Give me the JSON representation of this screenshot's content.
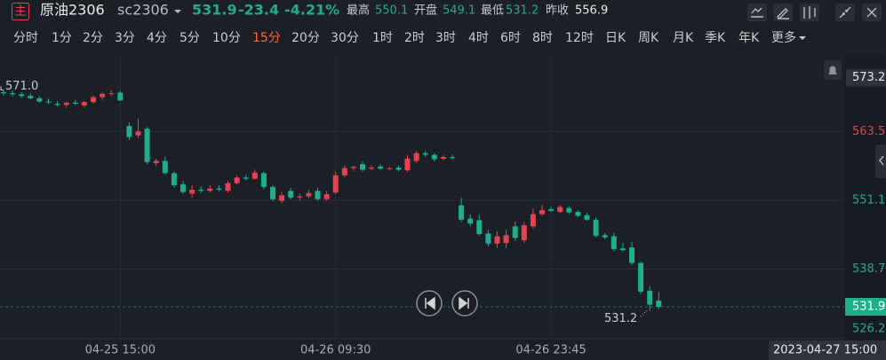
{
  "header": {
    "icon": "主",
    "name": "原油2306",
    "code": "sc2306",
    "price": "531.9",
    "change": "-23.4",
    "change_pct": "-4.21%",
    "stats": [
      {
        "label": "最高",
        "value": "550.1"
      },
      {
        "label": "开盘",
        "value": "549.1"
      },
      {
        "label": "最低",
        "value": "531.2"
      },
      {
        "label": "昨收",
        "value": "556.9"
      }
    ]
  },
  "periods": [
    "分时",
    "1分",
    "2分",
    "3分",
    "4分",
    "5分",
    "10分",
    "15分",
    "20分",
    "30分",
    "1时",
    "2时",
    "3时",
    "4时",
    "6时",
    "8时",
    "12时",
    "日K",
    "周K",
    "月K",
    "季K",
    "年K",
    "更多"
  ],
  "active_period": 7,
  "chart_data": {
    "type": "candlestick",
    "categories": [
      null,
      null,
      null,
      null,
      null,
      null,
      null,
      null,
      null,
      null,
      null,
      null,
      null,
      "04-25 15:00",
      null,
      null,
      null,
      null,
      null,
      null,
      null,
      null,
      null,
      null,
      null,
      null,
      null,
      null,
      null,
      null,
      null,
      null,
      null,
      null,
      null,
      null,
      null,
      "04-26 09:30",
      null,
      null,
      null,
      null,
      null,
      null,
      null,
      null,
      null,
      null,
      null,
      null,
      null,
      null,
      null,
      null,
      null,
      null,
      null,
      null,
      null,
      null,
      null,
      "04-26 23:45",
      null,
      null,
      null,
      null,
      null,
      null,
      null,
      null,
      null,
      null,
      null,
      null
    ],
    "ohlc": [
      [
        570.6,
        571.0,
        570.0,
        570.4
      ],
      [
        570.4,
        570.9,
        569.8,
        570.2
      ],
      [
        570.2,
        570.6,
        569.6,
        569.9
      ],
      [
        569.9,
        570.4,
        569.3,
        569.5
      ],
      [
        569.5,
        569.9,
        568.7,
        568.9
      ],
      [
        568.9,
        569.4,
        568.4,
        568.8
      ],
      [
        568.5,
        569.0,
        568.0,
        568.3
      ],
      [
        568.3,
        568.9,
        567.9,
        568.7
      ],
      [
        568.7,
        569.2,
        568.3,
        568.5
      ],
      [
        568.2,
        569.0,
        567.8,
        568.8
      ],
      [
        568.8,
        570.0,
        568.5,
        569.7
      ],
      [
        569.7,
        570.5,
        569.2,
        570.3
      ],
      [
        570.3,
        571.0,
        569.9,
        570.4
      ],
      [
        570.5,
        570.8,
        569.0,
        569.1
      ],
      [
        564.5,
        565.2,
        562.0,
        562.5
      ],
      [
        562.8,
        565.8,
        562.3,
        563.5
      ],
      [
        564.0,
        564.3,
        557.6,
        558.0
      ],
      [
        557.8,
        558.6,
        557.3,
        558.2
      ],
      [
        558.2,
        559.0,
        555.8,
        556.0
      ],
      [
        556.0,
        556.3,
        553.4,
        553.8
      ],
      [
        554.0,
        554.6,
        552.3,
        552.6
      ],
      [
        552.3,
        553.8,
        551.6,
        553.0
      ],
      [
        553.0,
        553.6,
        552.4,
        552.8
      ],
      [
        552.8,
        553.8,
        552.5,
        553.2
      ],
      [
        553.2,
        553.8,
        552.7,
        553.0
      ],
      [
        552.8,
        554.6,
        552.5,
        554.2
      ],
      [
        554.2,
        555.6,
        553.9,
        555.2
      ],
      [
        555.2,
        555.7,
        554.7,
        555.0
      ],
      [
        555.0,
        556.6,
        554.8,
        556.1
      ],
      [
        556.0,
        556.3,
        553.1,
        553.5
      ],
      [
        553.5,
        553.8,
        550.9,
        551.3
      ],
      [
        551.0,
        552.6,
        550.6,
        552.0
      ],
      [
        552.8,
        553.3,
        551.3,
        551.6
      ],
      [
        551.6,
        552.3,
        551.0,
        551.8
      ],
      [
        551.8,
        553.0,
        551.5,
        552.4
      ],
      [
        552.8,
        553.3,
        551.0,
        551.3
      ],
      [
        551.3,
        552.8,
        551.0,
        552.2
      ],
      [
        552.5,
        556.3,
        552.2,
        555.6
      ],
      [
        555.6,
        557.4,
        555.3,
        556.9
      ],
      [
        556.9,
        557.3,
        556.4,
        557.1
      ],
      [
        557.6,
        558.1,
        556.3,
        556.6
      ],
      [
        556.8,
        557.4,
        556.5,
        557.0
      ],
      [
        557.2,
        557.6,
        556.6,
        556.8
      ],
      [
        556.8,
        557.1,
        556.5,
        556.9
      ],
      [
        557.0,
        557.4,
        556.3,
        556.6
      ],
      [
        556.5,
        559.2,
        556.2,
        558.6
      ],
      [
        558.2,
        560.0,
        557.9,
        559.6
      ],
      [
        559.6,
        560.0,
        558.9,
        559.3
      ],
      [
        559.3,
        559.6,
        558.1,
        558.5
      ],
      [
        558.6,
        559.2,
        558.3,
        558.9
      ],
      [
        558.9,
        559.3,
        558.4,
        558.8
      ],
      [
        550.2,
        551.5,
        547.2,
        547.6
      ],
      [
        547.8,
        548.6,
        546.4,
        546.9
      ],
      [
        547.5,
        548.5,
        544.7,
        545.0
      ],
      [
        545.1,
        545.8,
        542.8,
        543.3
      ],
      [
        543.3,
        545.5,
        542.5,
        544.6
      ],
      [
        543.4,
        545.8,
        542.4,
        544.8
      ],
      [
        546.4,
        547.3,
        543.8,
        544.3
      ],
      [
        543.9,
        547.2,
        543.4,
        546.6
      ],
      [
        546.4,
        549.6,
        546.0,
        548.6
      ],
      [
        548.6,
        550.3,
        548.3,
        549.3
      ],
      [
        549.5,
        549.9,
        549.0,
        549.2
      ],
      [
        549.0,
        550.3,
        548.8,
        549.9
      ],
      [
        549.7,
        550.0,
        548.6,
        548.9
      ],
      [
        549.0,
        549.3,
        548.1,
        548.3
      ],
      [
        548.4,
        548.8,
        547.4,
        547.6
      ],
      [
        547.6,
        548.0,
        544.4,
        544.7
      ],
      [
        544.8,
        545.2,
        544.1,
        544.4
      ],
      [
        544.6,
        545.2,
        541.9,
        542.3
      ],
      [
        542.4,
        543.4,
        541.9,
        542.1
      ],
      [
        542.6,
        543.6,
        539.4,
        539.8
      ],
      [
        539.8,
        540.0,
        534.2,
        534.6
      ],
      [
        534.8,
        535.6,
        531.2,
        532.3
      ],
      [
        533.0,
        534.6,
        531.5,
        531.9
      ]
    ],
    "ylim": [
      525.5,
      577.3
    ],
    "yticks": [
      526.2,
      538.7,
      551.1,
      563.5
    ],
    "grid": true,
    "up_color": "#e5434f",
    "down_color": "#1fae8c",
    "top_label": 573.2,
    "last_price": 531.9,
    "high_marker": {
      "value": 571,
      "label": "571.0"
    },
    "low_marker": {
      "value": 531.2,
      "label": "531.2"
    },
    "crosshair_time": "2023-04-27 15:00"
  }
}
